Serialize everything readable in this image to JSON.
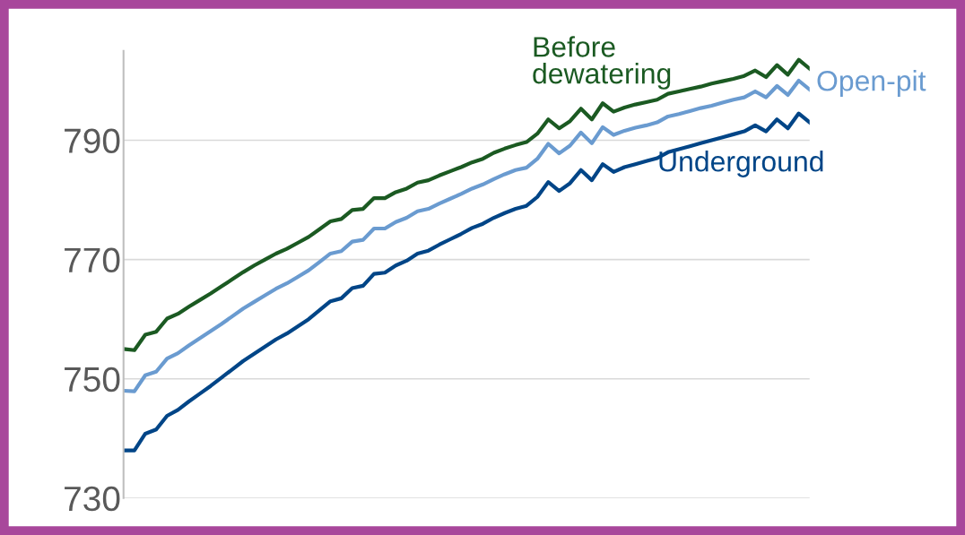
{
  "chart_data": {
    "type": "line",
    "categories": [
      null,
      null,
      null,
      null,
      null,
      null,
      null,
      null,
      null,
      null,
      null,
      null,
      null,
      null,
      null,
      null,
      null,
      null,
      null,
      null,
      null,
      null,
      null,
      null,
      null,
      null,
      null,
      null,
      null,
      null,
      null,
      null,
      null,
      null,
      null,
      null,
      null,
      null,
      null,
      null,
      null,
      null,
      null,
      null,
      null,
      null,
      null,
      null,
      null,
      null,
      null,
      null,
      null,
      null,
      null,
      null,
      null,
      null,
      null,
      null,
      null,
      null,
      null,
      null
    ],
    "series": [
      {
        "name": "Before\ndewatering",
        "color": "#1b5a22",
        "values": [
          755.0,
          754.8,
          757.4,
          757.9,
          760.1,
          760.9,
          762.1,
          763.2,
          764.3,
          765.5,
          766.7,
          767.9,
          769.0,
          770.0,
          771.0,
          771.8,
          772.8,
          773.8,
          775.1,
          776.4,
          776.8,
          778.3,
          778.5,
          780.3,
          780.3,
          781.3,
          781.9,
          782.9,
          783.3,
          784.1,
          784.8,
          785.5,
          786.3,
          786.9,
          787.9,
          788.6,
          789.2,
          789.7,
          791.1,
          793.5,
          792.0,
          793.2,
          795.3,
          793.5,
          796.2,
          794.8,
          795.5,
          796.0,
          796.4,
          796.8,
          797.8,
          798.2,
          798.6,
          799.0,
          799.5,
          799.9,
          800.3,
          800.8,
          801.7,
          800.6,
          802.6,
          801.0,
          803.5,
          802.0
        ]
      },
      {
        "name": "Open-pit",
        "color": "#6a9bd0",
        "values": [
          748.0,
          747.9,
          750.6,
          751.2,
          753.4,
          754.3,
          755.6,
          756.8,
          758.0,
          759.2,
          760.5,
          761.8,
          762.9,
          764.0,
          765.1,
          766.0,
          767.1,
          768.2,
          769.6,
          771.0,
          771.4,
          773.0,
          773.3,
          775.2,
          775.2,
          776.3,
          777.0,
          778.1,
          778.5,
          779.4,
          780.2,
          781.0,
          781.9,
          782.6,
          783.5,
          784.3,
          785.0,
          785.4,
          786.9,
          789.4,
          787.8,
          789.1,
          791.3,
          789.5,
          792.2,
          790.9,
          791.6,
          792.1,
          792.5,
          793.0,
          794.0,
          794.4,
          794.9,
          795.4,
          795.8,
          796.3,
          796.8,
          797.2,
          798.2,
          797.2,
          799.1,
          797.6,
          800.0,
          798.5
        ]
      },
      {
        "name": "Underground",
        "color": "#004587",
        "values": [
          738.0,
          738.0,
          740.8,
          741.5,
          743.8,
          744.8,
          746.2,
          747.5,
          748.8,
          750.2,
          751.6,
          753.0,
          754.2,
          755.4,
          756.6,
          757.6,
          758.8,
          760.0,
          761.5,
          763.0,
          763.5,
          765.2,
          765.6,
          767.6,
          767.8,
          769.0,
          769.8,
          771.0,
          771.5,
          772.5,
          773.4,
          774.3,
          775.3,
          776.0,
          777.0,
          777.8,
          778.5,
          779.0,
          780.5,
          783.0,
          781.5,
          782.8,
          785.0,
          783.3,
          786.0,
          784.7,
          785.5,
          786.0,
          786.5,
          787.0,
          788.0,
          788.5,
          789.0,
          789.5,
          790.0,
          790.5,
          791.0,
          791.5,
          792.5,
          791.5,
          793.5,
          792.0,
          794.5,
          793.0
        ]
      }
    ],
    "ylim": [
      730,
      805
    ],
    "yticks": [
      730,
      750,
      770,
      790
    ],
    "grid": "y",
    "legend": false,
    "tick_labels": "y"
  }
}
